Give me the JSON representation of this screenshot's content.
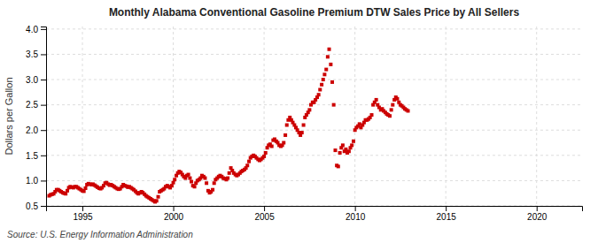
{
  "chart_data": {
    "type": "scatter",
    "title": "Monthly Alabama Conventional Gasoline Premium DTW Sales Price by All Sellers",
    "ylabel": "Dollars per Gallon",
    "source": "Source: U.S. Energy Information Administration",
    "color": "#cc0000",
    "marker": "square",
    "grid": true,
    "xlim": [
      1993.0,
      2022.5
    ],
    "ylim": [
      0.5,
      4.05
    ],
    "xticks": [
      1995,
      2000,
      2005,
      2010,
      2015,
      2020
    ],
    "yticks": [
      0.5,
      {
        "value": 1.0,
        "label": "1.0"
      },
      1.5,
      {
        "value": 2.0,
        "label": "2.0"
      },
      2.5,
      {
        "value": 3.0,
        "label": "3.0"
      },
      3.5,
      {
        "value": 4.0,
        "label": "4.0"
      }
    ],
    "x": [
      1993.17,
      1993.25,
      1993.33,
      1993.42,
      1993.5,
      1993.58,
      1993.67,
      1993.75,
      1993.83,
      1993.92,
      1994.0,
      1994.08,
      1994.17,
      1994.25,
      1994.33,
      1994.42,
      1994.5,
      1994.58,
      1994.67,
      1994.75,
      1994.83,
      1994.92,
      1995.0,
      1995.08,
      1995.17,
      1995.25,
      1995.33,
      1995.42,
      1995.5,
      1995.58,
      1995.67,
      1995.75,
      1995.83,
      1995.92,
      1996.0,
      1996.08,
      1996.17,
      1996.25,
      1996.33,
      1996.42,
      1996.5,
      1996.58,
      1996.67,
      1996.75,
      1996.83,
      1996.92,
      1997.0,
      1997.08,
      1997.17,
      1997.25,
      1997.33,
      1997.42,
      1997.5,
      1997.58,
      1997.67,
      1997.75,
      1997.83,
      1997.92,
      1998.0,
      1998.08,
      1998.17,
      1998.25,
      1998.33,
      1998.42,
      1998.5,
      1998.58,
      1998.67,
      1998.75,
      1998.83,
      1998.92,
      1999.0,
      1999.08,
      1999.17,
      1999.25,
      1999.33,
      1999.42,
      1999.5,
      1999.58,
      1999.67,
      1999.75,
      1999.83,
      1999.92,
      2000.0,
      2000.08,
      2000.17,
      2000.25,
      2000.33,
      2000.42,
      2000.5,
      2000.58,
      2000.67,
      2000.75,
      2000.83,
      2000.92,
      2001.0,
      2001.08,
      2001.17,
      2001.25,
      2001.33,
      2001.42,
      2001.5,
      2001.58,
      2001.67,
      2001.75,
      2001.83,
      2001.92,
      2002.0,
      2002.08,
      2002.17,
      2002.25,
      2002.33,
      2002.42,
      2002.5,
      2002.58,
      2002.67,
      2002.75,
      2002.83,
      2002.92,
      2003.0,
      2003.08,
      2003.17,
      2003.25,
      2003.33,
      2003.42,
      2003.5,
      2003.58,
      2003.67,
      2003.75,
      2003.83,
      2003.92,
      2004.0,
      2004.08,
      2004.17,
      2004.25,
      2004.33,
      2004.42,
      2004.5,
      2004.58,
      2004.67,
      2004.75,
      2004.83,
      2004.92,
      2005.0,
      2005.08,
      2005.17,
      2005.25,
      2005.33,
      2005.42,
      2005.5,
      2005.58,
      2005.67,
      2005.75,
      2005.83,
      2005.92,
      2006.0,
      2006.08,
      2006.17,
      2006.25,
      2006.33,
      2006.42,
      2006.5,
      2006.58,
      2006.67,
      2006.75,
      2006.83,
      2006.92,
      2007.0,
      2007.08,
      2007.17,
      2007.25,
      2007.33,
      2007.42,
      2007.5,
      2007.58,
      2007.67,
      2007.75,
      2007.83,
      2007.92,
      2008.0,
      2008.08,
      2008.17,
      2008.25,
      2008.33,
      2008.42,
      2008.5,
      2008.58,
      2008.67,
      2008.75,
      2008.83,
      2008.92,
      2009.0,
      2009.08,
      2009.17,
      2009.25,
      2009.33,
      2009.42,
      2009.5,
      2009.58,
      2009.67,
      2009.75,
      2009.83,
      2009.92,
      2010.0,
      2010.08,
      2010.17,
      2010.25,
      2010.33,
      2010.42,
      2010.5,
      2010.58,
      2010.67,
      2010.75,
      2010.83,
      2010.92,
      2011.0,
      2011.08,
      2011.17,
      2011.25,
      2011.33,
      2011.42,
      2011.5,
      2011.58,
      2011.67,
      2011.75,
      2011.83,
      2011.92,
      2012.0,
      2012.08,
      2012.17,
      2012.25,
      2012.33,
      2012.42,
      2012.5,
      2012.58,
      2012.67,
      2012.75,
      2012.83,
      2012.92
    ],
    "values": [
      0.7,
      0.72,
      0.73,
      0.74,
      0.78,
      0.82,
      0.82,
      0.8,
      0.78,
      0.76,
      0.75,
      0.74,
      0.8,
      0.86,
      0.88,
      0.87,
      0.86,
      0.88,
      0.88,
      0.86,
      0.84,
      0.82,
      0.8,
      0.79,
      0.85,
      0.92,
      0.94,
      0.93,
      0.92,
      0.93,
      0.91,
      0.89,
      0.87,
      0.85,
      0.84,
      0.86,
      0.9,
      0.95,
      0.96,
      0.93,
      0.91,
      0.92,
      0.9,
      0.88,
      0.86,
      0.84,
      0.83,
      0.84,
      0.88,
      0.92,
      0.9,
      0.89,
      0.87,
      0.88,
      0.86,
      0.84,
      0.82,
      0.79,
      0.76,
      0.74,
      0.76,
      0.78,
      0.76,
      0.73,
      0.7,
      0.68,
      0.66,
      0.64,
      0.62,
      0.6,
      0.58,
      0.6,
      0.68,
      0.78,
      0.8,
      0.82,
      0.84,
      0.88,
      0.9,
      0.88,
      0.86,
      0.9,
      0.96,
      1.02,
      1.1,
      1.15,
      1.18,
      1.16,
      1.12,
      1.08,
      1.05,
      1.1,
      1.12,
      1.05,
      0.98,
      0.9,
      0.88,
      0.95,
      1.0,
      1.02,
      1.05,
      1.1,
      1.08,
      1.05,
      0.95,
      0.8,
      0.76,
      0.78,
      0.82,
      0.95,
      1.02,
      1.05,
      1.08,
      1.1,
      1.08,
      1.05,
      1.04,
      1.02,
      1.05,
      1.15,
      1.25,
      1.2,
      1.15,
      1.12,
      1.1,
      1.12,
      1.15,
      1.18,
      1.2,
      1.22,
      1.25,
      1.3,
      1.38,
      1.45,
      1.48,
      1.5,
      1.48,
      1.45,
      1.42,
      1.4,
      1.42,
      1.45,
      1.48,
      1.55,
      1.65,
      1.7,
      1.72,
      1.68,
      1.8,
      1.82,
      1.78,
      1.75,
      1.7,
      1.68,
      1.7,
      1.75,
      1.9,
      2.1,
      2.2,
      2.25,
      2.2,
      2.15,
      2.1,
      2.05,
      2.0,
      1.95,
      1.9,
      1.95,
      2.1,
      2.25,
      2.3,
      2.35,
      2.4,
      2.5,
      2.55,
      2.55,
      2.6,
      2.65,
      2.7,
      2.8,
      2.9,
      3.0,
      3.1,
      3.2,
      3.45,
      3.6,
      3.3,
      2.95,
      2.5,
      1.6,
      1.3,
      1.28,
      1.55,
      1.65,
      1.7,
      1.58,
      1.62,
      1.55,
      1.58,
      1.65,
      1.7,
      1.78,
      2.0,
      2.05,
      2.08,
      2.12,
      2.05,
      2.1,
      2.15,
      2.2,
      2.2,
      2.22,
      2.25,
      2.3,
      2.5,
      2.55,
      2.6,
      2.5,
      2.45,
      2.4,
      2.42,
      2.38,
      2.35,
      2.32,
      2.3,
      2.28,
      2.4,
      2.5,
      2.6,
      2.65,
      2.62,
      2.55,
      2.5,
      2.48,
      2.45,
      2.42,
      2.4,
      2.38
    ]
  }
}
